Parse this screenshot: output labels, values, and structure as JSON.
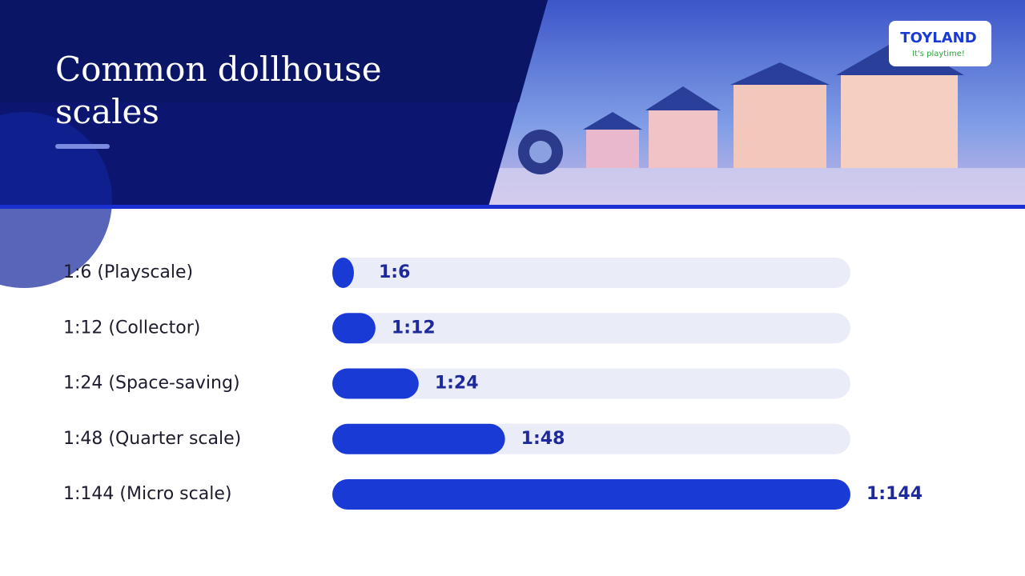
{
  "title": "Common dollhouse scales",
  "logo": {
    "name": "TOYLAND",
    "tagline": "It's playtime!"
  },
  "chart_data": {
    "type": "bar",
    "orientation": "horizontal",
    "categories": [
      "1:6 (Playscale)",
      "1:12 (Collector)",
      "1:24 (Space-saving)",
      "1:48 (Quarter scale)",
      "1:144 (Micro scale)"
    ],
    "values": [
      6,
      12,
      24,
      48,
      144
    ],
    "value_labels": [
      "1:6",
      "1:12",
      "1:24",
      "1:48",
      "1:144"
    ],
    "xlim": [
      0,
      144
    ],
    "color": "#1a3ad6",
    "track_color": "#eaecf8"
  }
}
